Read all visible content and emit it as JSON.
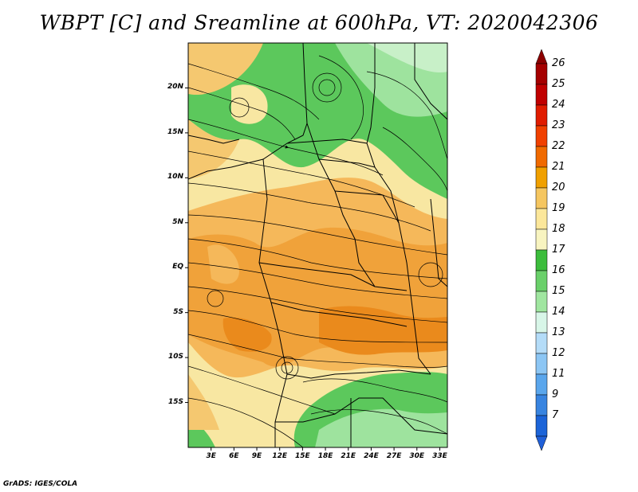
{
  "title": "WBPT [C] and Sreamline at 600hPa, VT: 2020042306",
  "footer": "GrADS: IGES/COLA",
  "map": {
    "lat_range": [
      -20,
      25
    ],
    "lon_range": [
      0,
      34
    ],
    "lat_ticks": [
      {
        "value": 20,
        "label": "20N"
      },
      {
        "value": 15,
        "label": "15N"
      },
      {
        "value": 10,
        "label": "10N"
      },
      {
        "value": 5,
        "label": "5N"
      },
      {
        "value": 0,
        "label": "EQ"
      },
      {
        "value": -5,
        "label": "5S"
      },
      {
        "value": -10,
        "label": "10S"
      },
      {
        "value": -15,
        "label": "15S"
      }
    ],
    "lon_ticks": [
      {
        "value": 3,
        "label": "3E"
      },
      {
        "value": 6,
        "label": "6E"
      },
      {
        "value": 9,
        "label": "9E"
      },
      {
        "value": 12,
        "label": "12E"
      },
      {
        "value": 15,
        "label": "15E"
      },
      {
        "value": 18,
        "label": "18E"
      },
      {
        "value": 21,
        "label": "21E"
      },
      {
        "value": 24,
        "label": "24E"
      },
      {
        "value": 27,
        "label": "27E"
      },
      {
        "value": 30,
        "label": "30E"
      },
      {
        "value": 33,
        "label": "33E"
      }
    ]
  },
  "colorbar": {
    "labels": [
      "26",
      "25",
      "24",
      "23",
      "22",
      "21",
      "20",
      "19",
      "18",
      "17",
      "16",
      "15",
      "14",
      "13",
      "12",
      "11",
      "9",
      "7"
    ],
    "colors": [
      "#a50000",
      "#c00000",
      "#e01c00",
      "#f04000",
      "#f06a00",
      "#f0a000",
      "#f5c660",
      "#fce79a",
      "#f8f4c0",
      "#3cbd3c",
      "#6ad06a",
      "#a0e6a0",
      "#d8f6e8",
      "#b4dcf8",
      "#8cc6f4",
      "#5aa6ec",
      "#3884e0",
      "#1c64d8"
    ],
    "top_arrow_color": "#8c0000",
    "bottom_arrow_color": "#2060d8"
  }
}
